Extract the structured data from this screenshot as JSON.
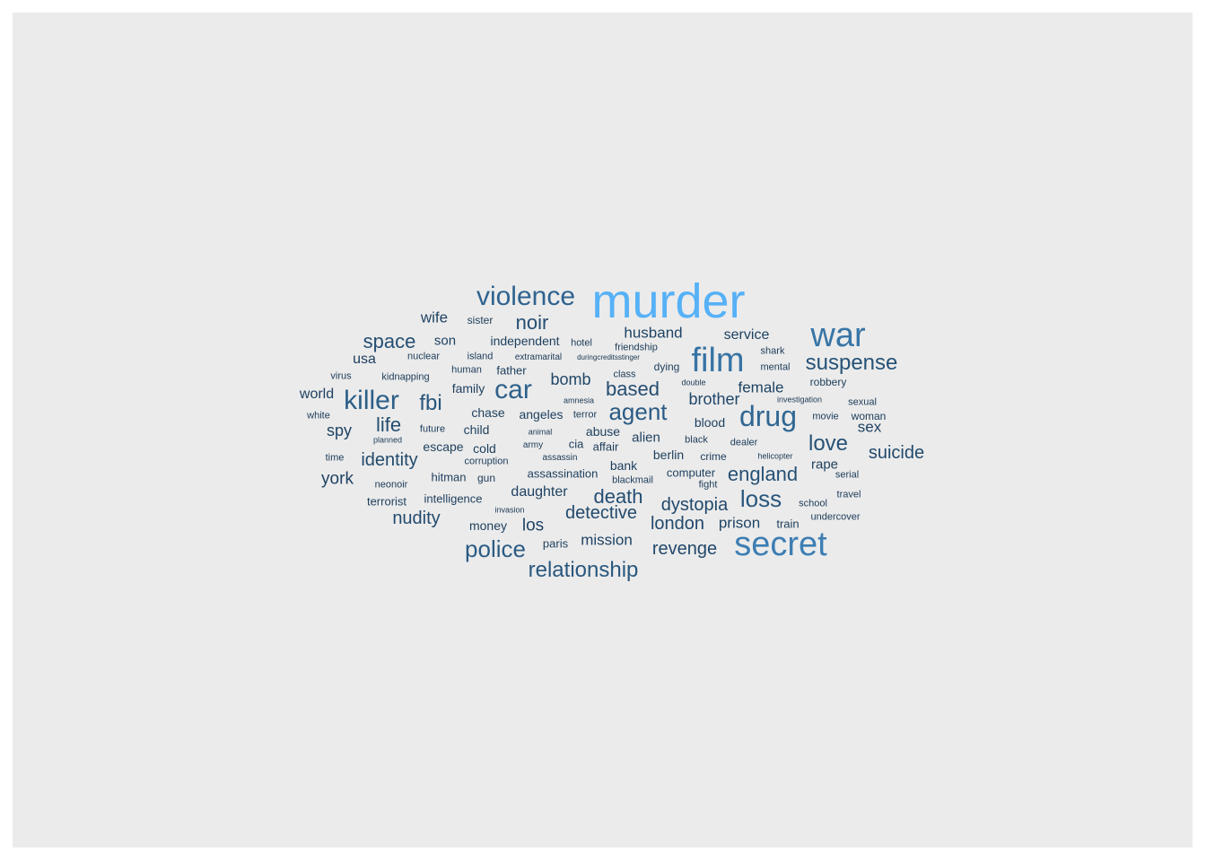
{
  "colors": {
    "panel": "#ebebeb",
    "low": "#132b43",
    "high": "#56b1f7"
  },
  "words": [
    {
      "t": "murder",
      "w": 1.0
    },
    {
      "t": "secret",
      "w": 0.62
    },
    {
      "t": "war",
      "w": 0.55
    },
    {
      "t": "film",
      "w": 0.54
    },
    {
      "t": "drug",
      "w": 0.44
    },
    {
      "t": "violence",
      "w": 0.42
    },
    {
      "t": "car",
      "w": 0.4
    },
    {
      "t": "killer",
      "w": 0.38
    },
    {
      "t": "agent",
      "w": 0.36
    },
    {
      "t": "police",
      "w": 0.36
    },
    {
      "t": "relationship",
      "w": 0.33
    },
    {
      "t": "loss",
      "w": 0.33
    },
    {
      "t": "fbi",
      "w": 0.31
    },
    {
      "t": "suspense",
      "w": 0.29
    },
    {
      "t": "england",
      "w": 0.28
    },
    {
      "t": "love",
      "w": 0.28
    },
    {
      "t": "death",
      "w": 0.26
    },
    {
      "t": "space",
      "w": 0.26
    },
    {
      "t": "noir",
      "w": 0.25
    },
    {
      "t": "based",
      "w": 0.25
    },
    {
      "t": "life",
      "w": 0.25
    },
    {
      "t": "nudity",
      "w": 0.24
    },
    {
      "t": "detective",
      "w": 0.23
    },
    {
      "t": "identity",
      "w": 0.23
    },
    {
      "t": "suicide",
      "w": 0.23
    },
    {
      "t": "dystopia",
      "w": 0.22
    },
    {
      "t": "london",
      "w": 0.22
    },
    {
      "t": "revenge",
      "w": 0.22
    },
    {
      "t": "brother",
      "w": 0.21
    },
    {
      "t": "bomb",
      "w": 0.21
    },
    {
      "t": "wife",
      "w": 0.19
    },
    {
      "t": "husband",
      "w": 0.19
    },
    {
      "t": "mission",
      "w": 0.19
    },
    {
      "t": "prison",
      "w": 0.19
    },
    {
      "t": "los",
      "w": 0.19
    },
    {
      "t": "york",
      "w": 0.19
    },
    {
      "t": "spy",
      "w": 0.18
    },
    {
      "t": "female",
      "w": 0.18
    },
    {
      "t": "sex",
      "w": 0.18
    },
    {
      "t": "daughter",
      "w": 0.17
    },
    {
      "t": "service",
      "w": 0.17
    },
    {
      "t": "usa",
      "w": 0.16
    },
    {
      "t": "son",
      "w": 0.16
    },
    {
      "t": "world",
      "w": 0.16
    },
    {
      "t": "rape",
      "w": 0.16
    },
    {
      "t": "alien",
      "w": 0.16
    },
    {
      "t": "blood",
      "w": 0.15
    },
    {
      "t": "independent",
      "w": 0.15
    },
    {
      "t": "angeles",
      "w": 0.15
    },
    {
      "t": "chase",
      "w": 0.15
    },
    {
      "t": "family",
      "w": 0.15
    },
    {
      "t": "child",
      "w": 0.15
    },
    {
      "t": "abuse",
      "w": 0.15
    },
    {
      "t": "escape",
      "w": 0.15
    },
    {
      "t": "bank",
      "w": 0.15
    },
    {
      "t": "berlin",
      "w": 0.15
    },
    {
      "t": "money",
      "w": 0.15
    },
    {
      "t": "cold",
      "w": 0.14
    },
    {
      "t": "computer",
      "w": 0.14
    },
    {
      "t": "assassination",
      "w": 0.14
    },
    {
      "t": "hitman",
      "w": 0.14
    },
    {
      "t": "intelligence",
      "w": 0.14
    },
    {
      "t": "terrorist",
      "w": 0.14
    },
    {
      "t": "robbery",
      "w": 0.14
    },
    {
      "t": "father",
      "w": 0.14
    },
    {
      "t": "dying",
      "w": 0.14
    },
    {
      "t": "paris",
      "w": 0.14
    },
    {
      "t": "train",
      "w": 0.14
    },
    {
      "t": "sister",
      "w": 0.13
    },
    {
      "t": "gun",
      "w": 0.13
    },
    {
      "t": "cia",
      "w": 0.13
    },
    {
      "t": "affair",
      "w": 0.13
    },
    {
      "t": "woman",
      "w": 0.13
    },
    {
      "t": "crime",
      "w": 0.12
    },
    {
      "t": "island",
      "w": 0.12
    },
    {
      "t": "human",
      "w": 0.12
    },
    {
      "t": "future",
      "w": 0.12
    },
    {
      "t": "hotel",
      "w": 0.12
    },
    {
      "t": "friendship",
      "w": 0.12
    },
    {
      "t": "nuclear",
      "w": 0.12
    },
    {
      "t": "mental",
      "w": 0.12
    },
    {
      "t": "class",
      "w": 0.12
    },
    {
      "t": "virus",
      "w": 0.12
    },
    {
      "t": "kidnapping",
      "w": 0.12
    },
    {
      "t": "white",
      "w": 0.12
    },
    {
      "t": "time",
      "w": 0.12
    },
    {
      "t": "corruption",
      "w": 0.12
    },
    {
      "t": "neonoir",
      "w": 0.12
    },
    {
      "t": "blackmail",
      "w": 0.12
    },
    {
      "t": "fight",
      "w": 0.12
    },
    {
      "t": "shark",
      "w": 0.12
    },
    {
      "t": "sexual",
      "w": 0.12
    },
    {
      "t": "movie",
      "w": 0.12
    },
    {
      "t": "dealer",
      "w": 0.12
    },
    {
      "t": "serial",
      "w": 0.12
    },
    {
      "t": "travel",
      "w": 0.12
    },
    {
      "t": "school",
      "w": 0.12
    },
    {
      "t": "undercover",
      "w": 0.12
    },
    {
      "t": "terror",
      "w": 0.12
    },
    {
      "t": "black",
      "w": 0.11
    },
    {
      "t": "army",
      "w": 0.11
    },
    {
      "t": "extramarital",
      "w": 0.1
    },
    {
      "t": "investigation",
      "w": 0.1
    },
    {
      "t": "helicopter",
      "w": 0.1
    },
    {
      "t": "amnesia",
      "w": 0.1
    },
    {
      "t": "double",
      "w": 0.1
    },
    {
      "t": "animal",
      "w": 0.1
    },
    {
      "t": "assassin",
      "w": 0.1
    },
    {
      "t": "planned",
      "w": 0.1
    },
    {
      "t": "invasion",
      "w": 0.1
    },
    {
      "t": "duringcreditsstinger",
      "w": 0.08
    }
  ]
}
